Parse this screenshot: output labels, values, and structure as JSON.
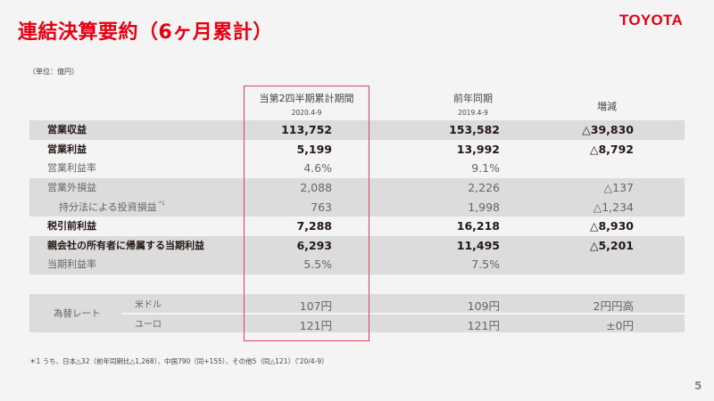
{
  "header": {
    "title": "連結決算要約（6ヶ月累計）",
    "logo": "TOYOTA",
    "unit": "（単位：億円）"
  },
  "columns": [
    {
      "label": "当第2四半期累計期間",
      "period": "2020.4-9"
    },
    {
      "label": "前年同期",
      "period": "2019.4-9"
    },
    {
      "label": "増減",
      "period": ""
    }
  ],
  "rows": [
    {
      "label": "営業収益",
      "current": "113,752",
      "previous": "153,582",
      "change": "△39,830",
      "style": "bold",
      "shaded": true
    },
    {
      "label": "営業利益",
      "current": "5,199",
      "previous": "13,992",
      "change": "△8,792",
      "style": "bold",
      "shaded": false
    },
    {
      "label": "営業利益率",
      "current": "4.6%",
      "previous": "9.1%",
      "change": "",
      "style": "light",
      "shaded": false
    },
    {
      "label": "営業外損益",
      "current": "2,088",
      "previous": "2,226",
      "change": "△137",
      "style": "light",
      "shaded": true
    },
    {
      "label": "持分法による投資損益",
      "footnote_mark": "*1",
      "current": "763",
      "previous": "1,998",
      "change": "△1,234",
      "style": "light",
      "shaded": true,
      "indent": true
    },
    {
      "label": "税引前利益",
      "current": "7,288",
      "previous": "16,218",
      "change": "△8,930",
      "style": "bold",
      "shaded": false
    },
    {
      "label": "親会社の所有者に帰属する当期利益",
      "current": "6,293",
      "previous": "11,495",
      "change": "△5,201",
      "style": "bold",
      "shaded": true
    },
    {
      "label": "当期利益率",
      "current": "5.5%",
      "previous": "7.5%",
      "change": "",
      "style": "light",
      "shaded": true
    }
  ],
  "fx": {
    "label": "為替レート",
    "rows": [
      {
        "currency": "米ドル",
        "current": "107円",
        "previous": "109円",
        "change": "2円円高"
      },
      {
        "currency": "ユーロ",
        "current": "121円",
        "previous": "121円",
        "change": "±0円"
      }
    ]
  },
  "footnote": "＊1 うち、日本△32（前年同期比△1,268）、中国790（同+155）、その他5（同△121）（'20/4-9）",
  "page_number": "5",
  "colors": {
    "brand": "#e60012",
    "highlight_box": "#e0405a",
    "row_shade": "#dcdcdc"
  }
}
